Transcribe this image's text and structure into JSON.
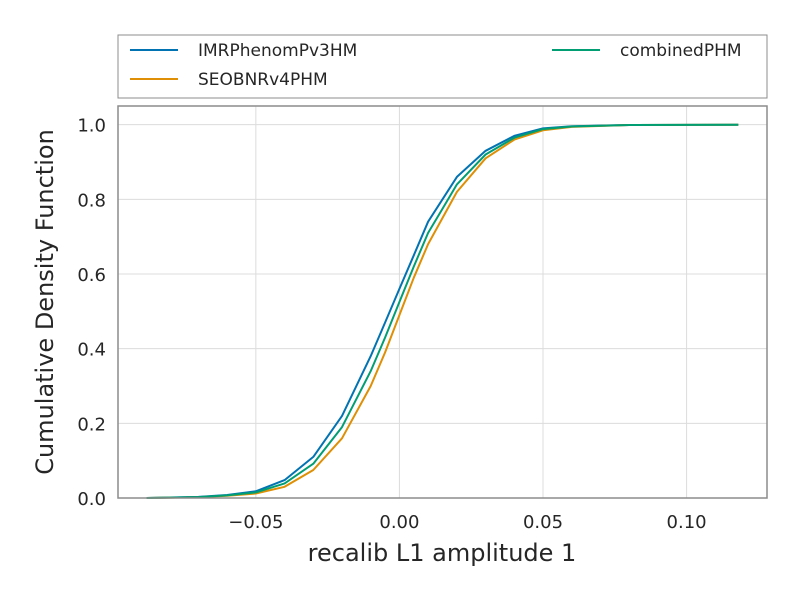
{
  "chart_data": {
    "type": "line",
    "xlabel": "recalib L1 amplitude 1",
    "ylabel": "Cumulative Density Function",
    "xlim": [
      -0.098,
      0.128
    ],
    "ylim": [
      0.0,
      1.05
    ],
    "x_ticks": [
      -0.05,
      0.0,
      0.05,
      0.1
    ],
    "x_tick_labels": [
      "−0.05",
      "0.00",
      "0.05",
      "0.10"
    ],
    "y_ticks": [
      0.0,
      0.2,
      0.4,
      0.6,
      0.8,
      1.0
    ],
    "y_tick_labels": [
      "0.0",
      "0.2",
      "0.4",
      "0.6",
      "0.8",
      "1.0"
    ],
    "grid": true,
    "legend_position": "top, outside plot area, two columns",
    "series": [
      {
        "name": "IMRPhenomPv3HM",
        "color": "#0173b2",
        "x": [
          -0.088,
          -0.07,
          -0.06,
          -0.05,
          -0.04,
          -0.03,
          -0.02,
          -0.01,
          -0.005,
          0.0,
          0.005,
          0.01,
          0.015,
          0.02,
          0.03,
          0.04,
          0.05,
          0.06,
          0.08,
          0.118
        ],
        "y": [
          0.0,
          0.003,
          0.008,
          0.018,
          0.048,
          0.11,
          0.22,
          0.38,
          0.47,
          0.56,
          0.65,
          0.74,
          0.8,
          0.86,
          0.93,
          0.97,
          0.99,
          0.996,
          0.999,
          1.0
        ]
      },
      {
        "name": "SEOBNRv4PHM",
        "color": "#de8f05",
        "x": [
          -0.088,
          -0.07,
          -0.06,
          -0.05,
          -0.04,
          -0.03,
          -0.02,
          -0.01,
          -0.005,
          0.0,
          0.005,
          0.01,
          0.015,
          0.02,
          0.03,
          0.04,
          0.05,
          0.06,
          0.08,
          0.118
        ],
        "y": [
          0.0,
          0.002,
          0.006,
          0.012,
          0.03,
          0.075,
          0.16,
          0.3,
          0.39,
          0.49,
          0.59,
          0.68,
          0.75,
          0.82,
          0.91,
          0.96,
          0.985,
          0.994,
          0.999,
          1.0
        ]
      },
      {
        "name": "combinedPHM",
        "color": "#029e73",
        "x": [
          -0.088,
          -0.07,
          -0.06,
          -0.05,
          -0.04,
          -0.03,
          -0.02,
          -0.01,
          -0.005,
          0.0,
          0.005,
          0.01,
          0.015,
          0.02,
          0.03,
          0.04,
          0.05,
          0.06,
          0.08,
          0.118
        ],
        "y": [
          0.0,
          0.0025,
          0.007,
          0.015,
          0.039,
          0.092,
          0.19,
          0.34,
          0.43,
          0.525,
          0.62,
          0.71,
          0.775,
          0.84,
          0.92,
          0.965,
          0.988,
          0.995,
          0.999,
          1.0
        ]
      }
    ]
  }
}
